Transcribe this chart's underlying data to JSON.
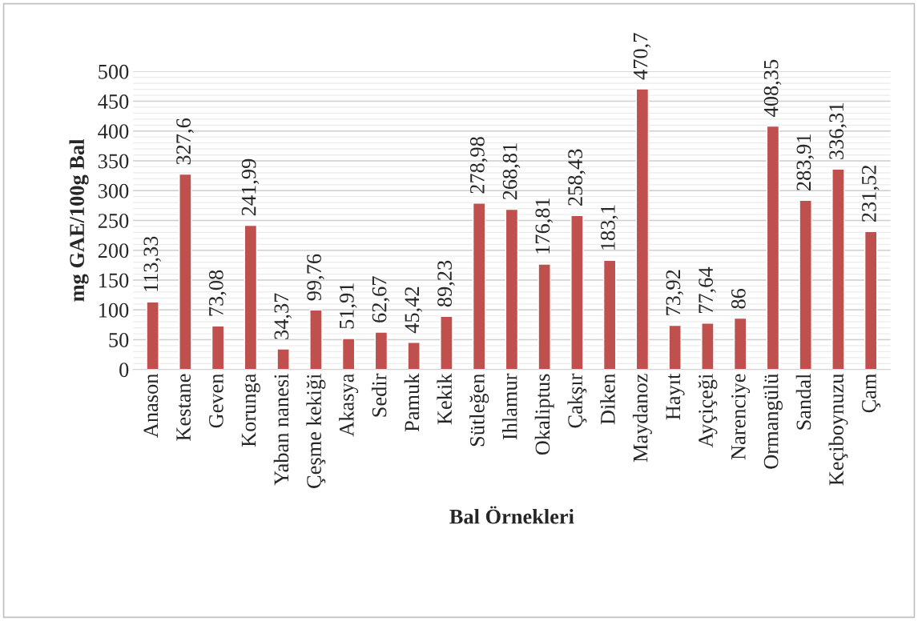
{
  "chart_data": {
    "type": "bar",
    "xlabel": "Bal Örnekleri",
    "ylabel": "mg GAE/100g Bal",
    "categories": [
      "Anason",
      "Kestane",
      "Geven",
      "Korunga",
      "Yaban nanesi",
      "Çeşme kekiği",
      "Akasya",
      "Sedir",
      "Pamuk",
      "Kekik",
      "Sütleğen",
      "Ihlamur",
      "Okaliptus",
      "Çakşır",
      "Diken",
      "Maydanoz",
      "Hayıt",
      "Ayçiçeği",
      "Narenciye",
      "Ormangülü",
      "Sandal",
      "Keçiboynuzu",
      "Çam"
    ],
    "values": [
      113.33,
      327.6,
      73.08,
      241.99,
      34.37,
      99.76,
      51.91,
      62.67,
      45.42,
      89.23,
      278.98,
      268.81,
      176.81,
      258.43,
      183.1,
      470.7,
      73.92,
      77.64,
      86,
      408.35,
      283.91,
      336.31,
      231.52
    ],
    "value_labels": [
      "113,33",
      "327,6",
      "73,08",
      "241,99",
      "34,37",
      "99,76",
      "51,91",
      "62,67",
      "45,42",
      "89,23",
      "278,98",
      "268,81",
      "176,81",
      "258,43",
      "183,1",
      "470,7",
      "73,92",
      "77,64",
      "86",
      "408,35",
      "283,91",
      "336,31",
      "231,52"
    ],
    "color": "#c0504d",
    "ylim": [
      0,
      500
    ],
    "yticks": [
      0,
      50,
      100,
      150,
      200,
      250,
      300,
      350,
      400,
      450,
      500
    ],
    "grid": "y",
    "legend": false
  }
}
